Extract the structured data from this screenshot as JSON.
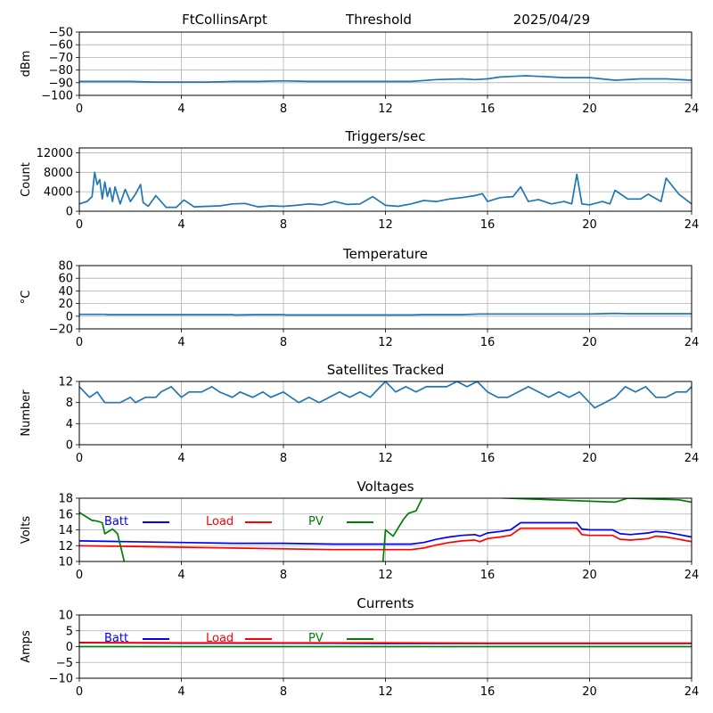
{
  "header": {
    "station": "FtCollinsArpt",
    "mode": "Threshold",
    "date": "2025/04/29"
  },
  "colors": {
    "series": "#1f77b4",
    "batt": "#0000ff",
    "load": "#ff0000",
    "pv": "#008000",
    "grid": "#b0b0b0"
  },
  "chart_data": [
    {
      "type": "line",
      "title": "",
      "xlabel": "",
      "ylabel": "dBm",
      "xlim": [
        0,
        24
      ],
      "ylim": [
        -100,
        -50
      ],
      "xticks": [
        "0",
        "4",
        "8",
        "12",
        "16",
        "20",
        "24"
      ],
      "yticks": [
        "−100",
        "−90",
        "−80",
        "−70",
        "−60",
        "−50"
      ],
      "grid": true,
      "series": [
        {
          "x": [
            0,
            1,
            2,
            3,
            4,
            5,
            6,
            7,
            8,
            9,
            10,
            11,
            12,
            13,
            14,
            15,
            15.5,
            16,
            16.5,
            17,
            17.5,
            18,
            18.5,
            19,
            19.5,
            20,
            21,
            22,
            23,
            24
          ],
          "values": [
            -89,
            -89,
            -89,
            -89.5,
            -89.5,
            -89.5,
            -89,
            -89,
            -88.5,
            -89,
            -89,
            -89,
            -89,
            -89,
            -87.5,
            -87,
            -87.5,
            -87,
            -85.5,
            -85,
            -84.5,
            -85,
            -85.5,
            -86,
            -86,
            -86,
            -88,
            -87,
            -87,
            -88
          ]
        }
      ]
    },
    {
      "type": "line",
      "title": "Triggers/sec",
      "xlabel": "",
      "ylabel": "Count",
      "xlim": [
        0,
        24
      ],
      "ylim": [
        0,
        13000
      ],
      "xticks": [
        "0",
        "4",
        "8",
        "12",
        "16",
        "20",
        "24"
      ],
      "yticks": [
        "0",
        "4000",
        "8000",
        "12000"
      ],
      "grid": true,
      "series": [
        {
          "x": [
            0,
            0.3,
            0.5,
            0.6,
            0.7,
            0.8,
            0.9,
            1.0,
            1.1,
            1.2,
            1.3,
            1.4,
            1.6,
            1.8,
            2.0,
            2.2,
            2.4,
            2.5,
            2.7,
            3.0,
            3.4,
            3.8,
            4.1,
            4.5,
            5.0,
            5.5,
            6.0,
            6.5,
            7.0,
            7.5,
            8.0,
            8.5,
            9.0,
            9.5,
            10.0,
            10.5,
            11.0,
            11.5,
            12.0,
            12.5,
            13.0,
            13.5,
            14.0,
            14.5,
            15.0,
            15.5,
            15.8,
            16.0,
            16.5,
            17.0,
            17.3,
            17.6,
            18.0,
            18.5,
            19.0,
            19.3,
            19.5,
            19.7,
            20.0,
            20.5,
            20.8,
            21.0,
            21.5,
            22.0,
            22.3,
            22.8,
            23.0,
            23.5,
            24.0
          ],
          "values": [
            1500,
            2000,
            3000,
            8000,
            5500,
            6500,
            2500,
            6000,
            3000,
            4800,
            2000,
            5000,
            1500,
            4500,
            2000,
            3500,
            5500,
            1800,
            1000,
            3200,
            800,
            800,
            2300,
            900,
            1000,
            1100,
            1500,
            1600,
            900,
            1100,
            1000,
            1200,
            1500,
            1300,
            2000,
            1400,
            1500,
            3000,
            1200,
            1000,
            1500,
            2200,
            2000,
            2500,
            2800,
            3200,
            3600,
            2000,
            2800,
            3000,
            5000,
            2000,
            2400,
            1500,
            2000,
            1500,
            7600,
            1500,
            1300,
            2000,
            1500,
            4300,
            2500,
            2500,
            3500,
            2000,
            6800,
            3500,
            1500
          ]
        }
      ]
    },
    {
      "type": "line",
      "title": "Temperature",
      "xlabel": "",
      "ylabel": "°C",
      "xlim": [
        0,
        24
      ],
      "ylim": [
        -20,
        80
      ],
      "xticks": [
        "0",
        "4",
        "8",
        "12",
        "16",
        "20",
        "24"
      ],
      "yticks": [
        "−20",
        "0",
        "20",
        "40",
        "60",
        "80"
      ],
      "grid": true,
      "series": [
        {
          "x": [
            0,
            1,
            1.1,
            6,
            6.1,
            7,
            8,
            8.1,
            12,
            13,
            13.5,
            15,
            15.7,
            16,
            20,
            20.5,
            21,
            21.5,
            22,
            24
          ],
          "values": [
            3,
            3,
            2.5,
            2.5,
            2,
            2.5,
            2.5,
            2,
            2,
            2,
            2.5,
            2.5,
            3.5,
            3.5,
            3.5,
            4,
            4.5,
            4,
            4,
            4
          ]
        }
      ]
    },
    {
      "type": "line",
      "title": "Satellites Tracked",
      "xlabel": "",
      "ylabel": "Number",
      "xlim": [
        0,
        24
      ],
      "ylim": [
        0,
        12
      ],
      "xticks": [
        "0",
        "4",
        "8",
        "12",
        "16",
        "20",
        "24"
      ],
      "yticks": [
        "0",
        "4",
        "8",
        "12"
      ],
      "grid": true,
      "series": [
        {
          "x": [
            0,
            0.2,
            0.4,
            0.7,
            1.0,
            1.2,
            1.6,
            2.0,
            2.2,
            2.6,
            3.0,
            3.2,
            3.6,
            4.0,
            4.3,
            4.8,
            5.2,
            5.5,
            6.0,
            6.3,
            6.8,
            7.2,
            7.5,
            8.0,
            8.3,
            8.6,
            9.0,
            9.4,
            9.8,
            10.2,
            10.6,
            11.0,
            11.4,
            11.8,
            12.0,
            12.4,
            12.8,
            13.2,
            13.6,
            14.0,
            14.4,
            14.8,
            15.2,
            15.6,
            16.0,
            16.4,
            16.8,
            17.2,
            17.6,
            18.0,
            18.4,
            18.8,
            19.2,
            19.6,
            20.0,
            20.2,
            20.6,
            21.0,
            21.4,
            21.8,
            22.2,
            22.6,
            23.0,
            23.4,
            23.8,
            24.0
          ],
          "values": [
            11,
            10,
            9,
            10,
            8,
            8,
            8,
            9,
            8,
            9,
            9,
            10,
            11,
            9,
            10,
            10,
            11,
            10,
            9,
            10,
            9,
            10,
            9,
            10,
            9,
            8,
            9,
            8,
            9,
            10,
            9,
            10,
            9,
            11,
            12,
            10,
            11,
            10,
            11,
            11,
            11,
            12,
            11,
            12,
            10,
            9,
            9,
            10,
            11,
            10,
            9,
            10,
            9,
            10,
            8,
            7,
            8,
            9,
            11,
            10,
            11,
            9,
            9,
            10,
            10,
            11
          ]
        }
      ]
    },
    {
      "type": "line",
      "title": "Voltages",
      "xlabel": "",
      "ylabel": "Volts",
      "xlim": [
        0,
        24
      ],
      "ylim": [
        10,
        18
      ],
      "xticks": [
        "0",
        "4",
        "8",
        "12",
        "16",
        "20",
        "24"
      ],
      "yticks": [
        "10",
        "12",
        "14",
        "16",
        "18"
      ],
      "grid": true,
      "legend": [
        "Batt",
        "Load",
        "PV"
      ],
      "series": [
        {
          "name": "Batt",
          "x": [
            0,
            2,
            4,
            6,
            8,
            10,
            12,
            13,
            13.5,
            14,
            14.5,
            15,
            15.5,
            15.7,
            16,
            16.5,
            16.9,
            17.3,
            17.5,
            18,
            19,
            19.5,
            19.7,
            20,
            20.9,
            21.2,
            21.6,
            22.3,
            22.6,
            23,
            23.5,
            24
          ],
          "values": [
            12.6,
            12.5,
            12.4,
            12.3,
            12.3,
            12.2,
            12.2,
            12.2,
            12.4,
            12.8,
            13.1,
            13.3,
            13.4,
            13.2,
            13.6,
            13.8,
            14,
            14.9,
            14.9,
            14.9,
            14.9,
            14.9,
            14.1,
            14,
            14,
            13.5,
            13.4,
            13.6,
            13.8,
            13.7,
            13.4,
            13.1
          ]
        },
        {
          "name": "Load",
          "x": [
            0,
            2,
            4,
            6,
            8,
            10,
            12,
            13,
            13.5,
            14,
            14.5,
            15,
            15.5,
            15.7,
            16,
            16.5,
            16.9,
            17.3,
            17.5,
            18,
            19,
            19.5,
            19.7,
            20,
            20.9,
            21.2,
            21.6,
            22.3,
            22.6,
            23,
            23.5,
            24
          ],
          "values": [
            12,
            11.9,
            11.8,
            11.7,
            11.6,
            11.5,
            11.5,
            11.5,
            11.7,
            12.1,
            12.4,
            12.6,
            12.7,
            12.5,
            12.9,
            13.1,
            13.3,
            14.2,
            14.2,
            14.2,
            14.2,
            14.2,
            13.4,
            13.3,
            13.3,
            12.8,
            12.7,
            12.9,
            13.2,
            13.1,
            12.8,
            12.5
          ]
        },
        {
          "name": "PV",
          "x": [
            0,
            0.5,
            0.7,
            0.9,
            1.0,
            1.3,
            1.5,
            1.8,
            11.9,
            12.0,
            12.3,
            12.7,
            12.9,
            13.2,
            13.5,
            21.0,
            21.5,
            23.5,
            24
          ],
          "values": [
            16.2,
            15.2,
            15.1,
            14.9,
            13.5,
            14.1,
            13.5,
            9.5,
            9.8,
            14,
            13.2,
            15.3,
            16.1,
            16.4,
            18.4,
            17.5,
            18,
            17.8,
            17.5
          ]
        }
      ]
    },
    {
      "type": "line",
      "title": "Currents",
      "xlabel": "",
      "ylabel": "Amps",
      "xlim": [
        0,
        24
      ],
      "ylim": [
        -10,
        10
      ],
      "xticks": [
        "0",
        "4",
        "8",
        "12",
        "16",
        "20",
        "24"
      ],
      "yticks": [
        "−10",
        "−5",
        "0",
        "5",
        "10"
      ],
      "grid": true,
      "legend": [
        "Batt",
        "Load",
        "PV"
      ],
      "series": [
        {
          "name": "Batt",
          "x": [
            0,
            4,
            8,
            12,
            16,
            20,
            24
          ],
          "values": [
            1.2,
            1.1,
            1.1,
            1.0,
            1.0,
            1.0,
            1.0
          ]
        },
        {
          "name": "Load",
          "x": [
            0,
            4,
            8,
            12,
            16,
            20,
            24
          ],
          "values": [
            1.3,
            1.2,
            1.2,
            1.2,
            1.1,
            1.1,
            1.1
          ]
        },
        {
          "name": "PV",
          "x": [
            0,
            4,
            8,
            12,
            16,
            20,
            24
          ],
          "values": [
            0,
            0,
            0,
            0,
            0,
            0,
            0
          ]
        }
      ]
    }
  ]
}
